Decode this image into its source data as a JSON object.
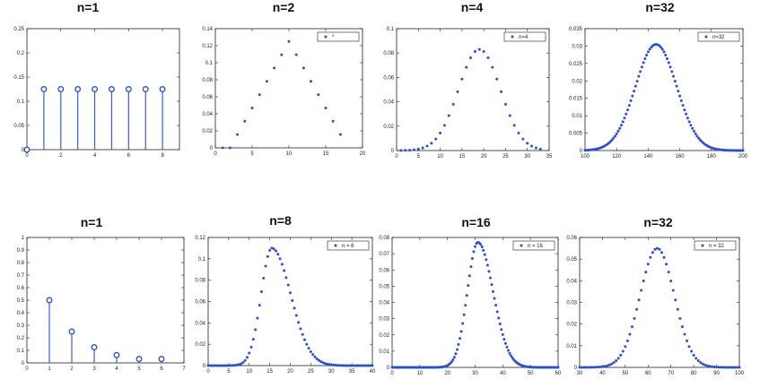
{
  "chart_data": [
    {
      "id": "c1",
      "type": "stem",
      "title": "n=1",
      "xlim": [
        0,
        9
      ],
      "ylim": [
        0,
        0.25
      ],
      "xticks": [
        0,
        2,
        4,
        6,
        8
      ],
      "yticks": [
        0,
        0.05,
        0.1,
        0.15,
        0.2,
        0.25
      ],
      "xticklabels": [
        "0",
        "2",
        "4",
        "6",
        "8"
      ],
      "yticklabels": [
        "0",
        "0.05",
        "0.1",
        "0.15",
        "0.2",
        "0.25"
      ],
      "x": [
        0,
        1,
        2,
        3,
        4,
        5,
        6,
        7,
        8
      ],
      "y": [
        0,
        0.125,
        0.125,
        0.125,
        0.125,
        0.125,
        0.125,
        0.125,
        0.125
      ],
      "marker": "circle",
      "legend": null
    },
    {
      "id": "c2",
      "type": "scatter",
      "title": "n=2",
      "xlim": [
        0,
        20
      ],
      "ylim": [
        0,
        0.14
      ],
      "xticks": [
        0,
        5,
        10,
        15,
        20
      ],
      "yticks": [
        0,
        0.02,
        0.04,
        0.06,
        0.08,
        0.1,
        0.12,
        0.14
      ],
      "xticklabels": [
        "0",
        "5",
        "10",
        "15",
        "20"
      ],
      "yticklabels": [
        "0",
        "0.02",
        "0.04",
        "0.06",
        "0.08",
        "0.1",
        "0.12",
        "0.14"
      ],
      "x": [
        1,
        2,
        3,
        4,
        5,
        6,
        7,
        8,
        9,
        10,
        11,
        12,
        13,
        14,
        15,
        16,
        17
      ],
      "y": [
        0,
        0,
        0.0156,
        0.0313,
        0.0469,
        0.0625,
        0.0781,
        0.0938,
        0.1094,
        0.125,
        0.1094,
        0.0938,
        0.0781,
        0.0625,
        0.0469,
        0.0313,
        0.0156
      ],
      "marker": "dot",
      "legend": {
        "label": "*"
      }
    },
    {
      "id": "c3",
      "type": "scatter",
      "title": "n=4",
      "xlim": [
        0,
        35
      ],
      "ylim": [
        0,
        0.1
      ],
      "xticks": [
        0,
        5,
        10,
        15,
        20,
        25,
        30,
        35
      ],
      "yticks": [
        0,
        0.02,
        0.04,
        0.06,
        0.08,
        0.1
      ],
      "xticklabels": [
        "0",
        "5",
        "10",
        "15",
        "20",
        "25",
        "30",
        "35"
      ],
      "yticklabels": [
        "0",
        "0.02",
        "0.04",
        "0.06",
        "0.08",
        "0.1"
      ],
      "gen": {
        "kind": "gauss",
        "xmin": 1,
        "xmax": 33,
        "step": 1,
        "mu": 19,
        "sigma": 4.8,
        "peak": 0.083
      },
      "marker": "dot",
      "legend": {
        "label": "n=4"
      }
    },
    {
      "id": "c4",
      "type": "scatter",
      "title": "n=32",
      "xlim": [
        100,
        200
      ],
      "ylim": [
        0,
        0.035
      ],
      "xticks": [
        100,
        120,
        140,
        160,
        180,
        200
      ],
      "yticks": [
        0,
        0.005,
        0.01,
        0.015,
        0.02,
        0.025,
        0.03,
        0.035
      ],
      "xticklabels": [
        "100",
        "120",
        "140",
        "160",
        "180",
        "200"
      ],
      "yticklabels": [
        "0",
        "0.005",
        "0.01",
        "0.015",
        "0.02",
        "0.025",
        "0.03",
        "0.035"
      ],
      "gen": {
        "kind": "gauss",
        "xmin": 100,
        "xmax": 200,
        "step": 1,
        "mu": 145,
        "sigma": 13,
        "peak": 0.0305
      },
      "marker": "dot",
      "legend": {
        "label": "n=32"
      }
    },
    {
      "id": "c5",
      "type": "stem",
      "title": "n=1",
      "xlim": [
        0,
        7
      ],
      "ylim": [
        0,
        1
      ],
      "xticks": [
        0,
        1,
        2,
        3,
        4,
        5,
        6,
        7
      ],
      "yticks": [
        0,
        0.1,
        0.2,
        0.3,
        0.4,
        0.5,
        0.6,
        0.7,
        0.8,
        0.9,
        1
      ],
      "xticklabels": [
        "0",
        "1",
        "2",
        "3",
        "4",
        "5",
        "6",
        "7"
      ],
      "yticklabels": [
        "0",
        "0.1",
        "0.2",
        "0.3",
        "0.4",
        "0.5",
        "0.6",
        "0.7",
        "0.8",
        "0.9",
        "1"
      ],
      "x": [
        1,
        2,
        3,
        4,
        5,
        6
      ],
      "y": [
        0.5,
        0.25,
        0.125,
        0.0625,
        0.03125,
        0.03125
      ],
      "marker": "circle",
      "legend": null
    },
    {
      "id": "c6",
      "type": "scatter",
      "title": "n=8",
      "xlim": [
        0,
        40
      ],
      "ylim": [
        0,
        0.12
      ],
      "xticks": [
        0,
        5,
        10,
        15,
        20,
        25,
        30,
        35,
        40
      ],
      "yticks": [
        0,
        0.02,
        0.04,
        0.06,
        0.08,
        0.1,
        0.12
      ],
      "xticklabels": [
        "0",
        "5",
        "10",
        "15",
        "20",
        "25",
        "30",
        "35",
        "40"
      ],
      "yticklabels": [
        "0",
        "0.02",
        "0.04",
        "0.06",
        "0.08",
        "0.1",
        "0.12"
      ],
      "gen": {
        "kind": "skew",
        "xmin": 0,
        "xmax": 40,
        "step": 0.5,
        "mode": 15.5,
        "sl": 2.6,
        "sr": 4.6,
        "peak": 0.11
      },
      "marker": "dot",
      "legend": {
        "label": "n = 8"
      }
    },
    {
      "id": "c7",
      "type": "scatter",
      "title": "n=16",
      "xlim": [
        0,
        60
      ],
      "ylim": [
        0,
        0.08
      ],
      "xticks": [
        0,
        10,
        20,
        30,
        40,
        50,
        60
      ],
      "yticks": [
        0,
        0.01,
        0.02,
        0.03,
        0.04,
        0.05,
        0.06,
        0.07,
        0.08
      ],
      "xticklabels": [
        "0",
        "10",
        "20",
        "30",
        "40",
        "50",
        "60"
      ],
      "yticklabels": [
        "0",
        "0.01",
        "0.02",
        "0.03",
        "0.04",
        "0.05",
        "0.06",
        "0.07",
        "0.08"
      ],
      "gen": {
        "kind": "skew",
        "xmin": 0,
        "xmax": 60,
        "step": 0.5,
        "mode": 31,
        "sl": 3.8,
        "sr": 5.5,
        "peak": 0.077
      },
      "marker": "dot",
      "legend": {
        "label": "n = 16"
      }
    },
    {
      "id": "c8",
      "type": "scatter",
      "title": "n=32",
      "xlim": [
        30,
        100
      ],
      "ylim": [
        0,
        0.06
      ],
      "xticks": [
        30,
        40,
        50,
        60,
        70,
        80,
        90,
        100
      ],
      "yticks": [
        0,
        0.01,
        0.02,
        0.03,
        0.04,
        0.05,
        0.06
      ],
      "xticklabels": [
        "30",
        "40",
        "50",
        "60",
        "70",
        "80",
        "90",
        "100"
      ],
      "yticklabels": [
        "0",
        "0.01",
        "0.02",
        "0.03",
        "0.04",
        "0.05",
        "0.06"
      ],
      "gen": {
        "kind": "gauss",
        "xmin": 30,
        "xmax": 100,
        "step": 1,
        "mu": 64,
        "sigma": 7.5,
        "peak": 0.055
      },
      "marker": "dot",
      "legend": {
        "label": "n = 32"
      }
    }
  ],
  "colors": {
    "marker": "#2a4fd6",
    "stem": "#3a5fd0",
    "axis": "#222222"
  }
}
